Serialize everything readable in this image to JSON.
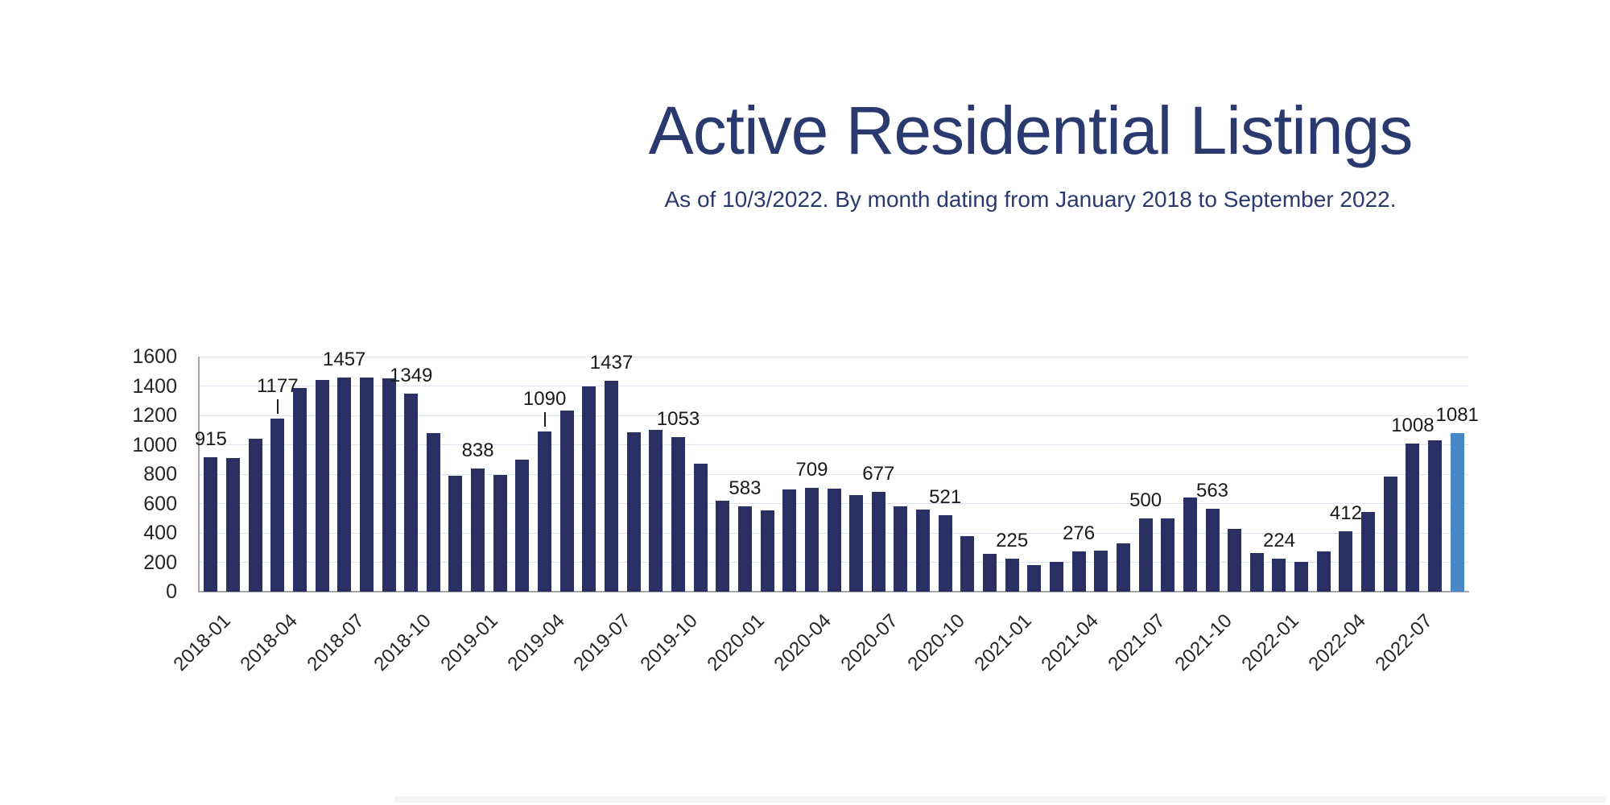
{
  "title": "Active Residential Listings",
  "subtitle": "As of 10/3/2022. By month dating from January 2018 to September 2022.",
  "colors": {
    "bar": "#283064",
    "bar_highlight": "#4a87c6",
    "title_text": "#2b3a6e",
    "axis_line": "#a6a6a6",
    "gridline": "#dde4f1",
    "label_text": "#1a1a1a"
  },
  "chart_data": {
    "type": "bar",
    "title": "Active Residential Listings",
    "subtitle": "As of 10/3/2022. By month dating from January 2018 to September 2022.",
    "xlabel": "",
    "ylabel": "",
    "ylim": [
      0,
      1600
    ],
    "ytick_step": 200,
    "yticks": [
      0,
      200,
      400,
      600,
      800,
      1000,
      1200,
      1400,
      1600
    ],
    "grid": true,
    "legend": false,
    "x": [
      "2018-01",
      "2018-02",
      "2018-03",
      "2018-04",
      "2018-05",
      "2018-06",
      "2018-07",
      "2018-08",
      "2018-09",
      "2018-10",
      "2018-11",
      "2018-12",
      "2019-01",
      "2019-02",
      "2019-03",
      "2019-04",
      "2019-05",
      "2019-06",
      "2019-07",
      "2019-08",
      "2019-09",
      "2019-10",
      "2019-11",
      "2019-12",
      "2020-01",
      "2020-02",
      "2020-03",
      "2020-04",
      "2020-05",
      "2020-06",
      "2020-07",
      "2020-08",
      "2020-09",
      "2020-10",
      "2020-11",
      "2020-12",
      "2021-01",
      "2021-02",
      "2021-03",
      "2021-04",
      "2021-05",
      "2021-06",
      "2021-07",
      "2021-08",
      "2021-09",
      "2021-10",
      "2021-11",
      "2021-12",
      "2022-01",
      "2022-02",
      "2022-03",
      "2022-04",
      "2022-05",
      "2022-06",
      "2022-07",
      "2022-08",
      "2022-09"
    ],
    "values": [
      915,
      912,
      1040,
      1177,
      1385,
      1440,
      1457,
      1457,
      1455,
      1349,
      1078,
      788,
      838,
      795,
      898,
      1090,
      1235,
      1400,
      1437,
      1085,
      1100,
      1053,
      870,
      620,
      583,
      556,
      695,
      709,
      703,
      658,
      677,
      583,
      560,
      521,
      377,
      258,
      225,
      180,
      202,
      276,
      278,
      331,
      500,
      500,
      640,
      563,
      425,
      263,
      224,
      202,
      275,
      412,
      540,
      785,
      1008,
      1030,
      1081
    ],
    "data_labels": [
      {
        "month": "2018-01",
        "value": 915
      },
      {
        "month": "2018-04",
        "value": 1177
      },
      {
        "month": "2018-07",
        "value": 1457
      },
      {
        "month": "2018-10",
        "value": 1349
      },
      {
        "month": "2019-01",
        "value": 838
      },
      {
        "month": "2019-04",
        "value": 1090
      },
      {
        "month": "2019-07",
        "value": 1437
      },
      {
        "month": "2019-10",
        "value": 1053
      },
      {
        "month": "2020-01",
        "value": 583
      },
      {
        "month": "2020-04",
        "value": 709
      },
      {
        "month": "2020-07",
        "value": 677
      },
      {
        "month": "2020-10",
        "value": 521
      },
      {
        "month": "2021-01",
        "value": 225
      },
      {
        "month": "2021-04",
        "value": 276
      },
      {
        "month": "2021-07",
        "value": 500
      },
      {
        "month": "2021-10",
        "value": 563
      },
      {
        "month": "2022-01",
        "value": 224
      },
      {
        "month": "2022-04",
        "value": 412
      },
      {
        "month": "2022-07",
        "value": 1008
      },
      {
        "month": "2022-09",
        "value": 1081
      }
    ],
    "leader_line_labels": [
      "2018-04",
      "2019-04"
    ],
    "xticks": [
      "2018-01",
      "2018-04",
      "2018-07",
      "2018-10",
      "2019-01",
      "2019-04",
      "2019-07",
      "2019-10",
      "2020-01",
      "2020-04",
      "2020-07",
      "2020-10",
      "2021-01",
      "2021-04",
      "2021-07",
      "2021-10",
      "2022-01",
      "2022-04",
      "2022-07"
    ],
    "highlight_month": "2022-09",
    "legend_position": "none"
  }
}
